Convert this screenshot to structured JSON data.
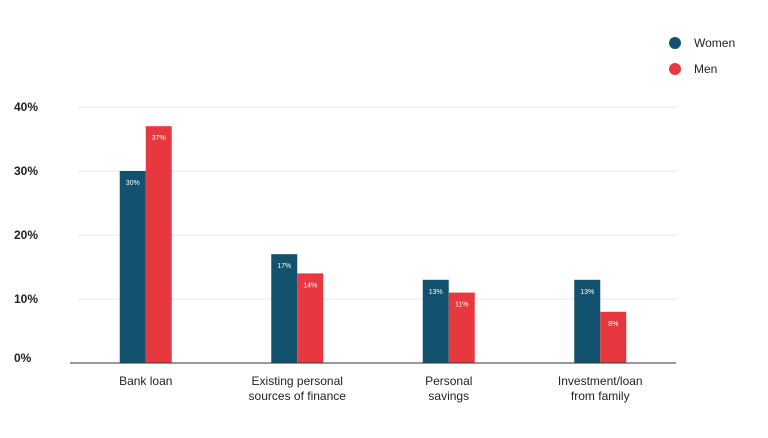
{
  "chart_data": {
    "type": "bar",
    "categories": [
      [
        "Bank loan"
      ],
      [
        "Existing personal",
        "sources of finance"
      ],
      [
        "Personal",
        "savings"
      ],
      [
        "Investment/loan",
        "from family"
      ]
    ],
    "series": [
      {
        "name": "Women",
        "color": "#12526f",
        "values": [
          30,
          17,
          13,
          13
        ],
        "labels": [
          "30%",
          "17%",
          "13%",
          "13%"
        ]
      },
      {
        "name": "Men",
        "color": "#e8383f",
        "values": [
          37,
          14,
          11,
          8
        ],
        "labels": [
          "37%",
          "14%",
          "11%",
          "8%"
        ]
      }
    ],
    "y_ticks": [
      0,
      10,
      20,
      30,
      40
    ],
    "y_tick_labels": [
      "0%",
      "10%",
      "20%",
      "30%",
      "40%"
    ],
    "ylim": [
      0,
      40
    ],
    "grid": true,
    "legend_position": "top-right",
    "title": "",
    "xlabel": "",
    "ylabel": ""
  }
}
